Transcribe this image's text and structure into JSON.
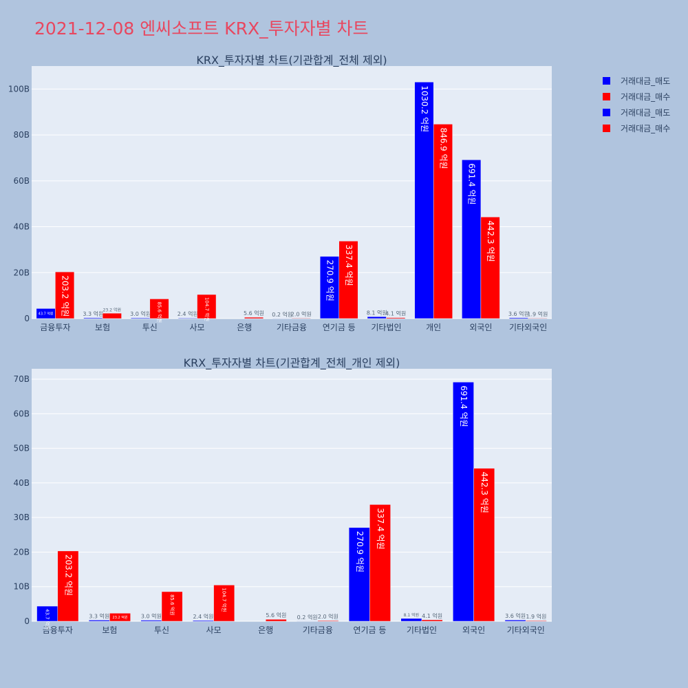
{
  "page": {
    "title": "2021-12-08 엔씨소프트 KRX_투자자별 차트"
  },
  "legend": [
    {
      "label": "거래대금_매도",
      "color": "#0000ff"
    },
    {
      "label": "거래대금_매수",
      "color": "#ff0000"
    },
    {
      "label": "거래대금_매도",
      "color": "#0000ff"
    },
    {
      "label": "거래대금_매수",
      "color": "#ff0000"
    }
  ],
  "colors": {
    "sell": "#0000ff",
    "buy": "#ff0000",
    "plot_bg": "#e5ecf6",
    "grid": "#ffffff",
    "text": "#2a3f5f"
  },
  "chart_data": [
    {
      "type": "bar",
      "title": "KRX_투자자별 차트(기관합계_전체 제외)",
      "categories": [
        "금융투자",
        "보험",
        "투신",
        "사모",
        "은행",
        "기타금융",
        "연기금 등",
        "기타법인",
        "개인",
        "외국인",
        "기타외국인"
      ],
      "series": [
        {
          "name": "거래대금_매도",
          "values": [
            4.37,
            0.33,
            0.3,
            0.24,
            0,
            0.02,
            27.09,
            0.81,
            103.02,
            69.14,
            0.36
          ],
          "labels": [
            "43.7 억원",
            "3.3 억원",
            "3.0 억원",
            "2.4 억원",
            "",
            "0.2 억원",
            "270.9 억원",
            "8.1 억원",
            "1030.2 억원",
            "691.4 억원",
            "3.6 억원"
          ]
        },
        {
          "name": "거래대금_매수",
          "values": [
            20.32,
            2.32,
            8.56,
            10.47,
            0.56,
            0.2,
            33.74,
            0.41,
            84.69,
            44.23,
            0.19
          ],
          "labels": [
            "203.2 억원",
            "23.2 억원",
            "85.6 억원",
            "104.7 억원",
            "5.6 억원",
            "2.0 억원",
            "337.4 억원",
            "4.1 억원",
            "846.9 억원",
            "442.3 억원",
            "1.9 억원"
          ]
        }
      ],
      "ylim": [
        0,
        110
      ],
      "yticks": [
        0,
        20,
        40,
        60,
        80,
        100
      ],
      "ytick_labels": [
        "0",
        "20B",
        "40B",
        "60B",
        "80B",
        "100B"
      ],
      "grid": true
    },
    {
      "type": "bar",
      "title": "KRX_투자자별 차트(기관합계_전체_개인 제외)",
      "categories": [
        "금융투자",
        "보험",
        "투신",
        "사모",
        "은행",
        "기타금융",
        "연기금 등",
        "기타법인",
        "외국인",
        "기타외국인"
      ],
      "series": [
        {
          "name": "거래대금_매도",
          "values": [
            4.37,
            0.33,
            0.3,
            0.24,
            0,
            0.02,
            27.09,
            0.81,
            69.14,
            0.36
          ],
          "labels": [
            "43.7 억원",
            "3.3 억원",
            "3.0 억원",
            "2.4 억원",
            "",
            "0.2 억원",
            "270.9 억원",
            "8.1 억원",
            "691.4 억원",
            "3.6 억원"
          ]
        },
        {
          "name": "거래대금_매수",
          "values": [
            20.32,
            2.32,
            8.56,
            10.47,
            0.56,
            0.2,
            33.74,
            0.41,
            44.23,
            0.19
          ],
          "labels": [
            "203.2 억원",
            "23.2 억원",
            "85.6 억원",
            "104.7 억원",
            "5.6 억원",
            "2.0 억원",
            "337.4 억원",
            "4.1 억원",
            "442.3 억원",
            "1.9 억원"
          ]
        }
      ],
      "ylim": [
        0,
        73
      ],
      "yticks": [
        0,
        10,
        20,
        30,
        40,
        50,
        60,
        70
      ],
      "ytick_labels": [
        "0",
        "10B",
        "20B",
        "30B",
        "40B",
        "50B",
        "60B",
        "70B"
      ],
      "grid": true
    }
  ]
}
